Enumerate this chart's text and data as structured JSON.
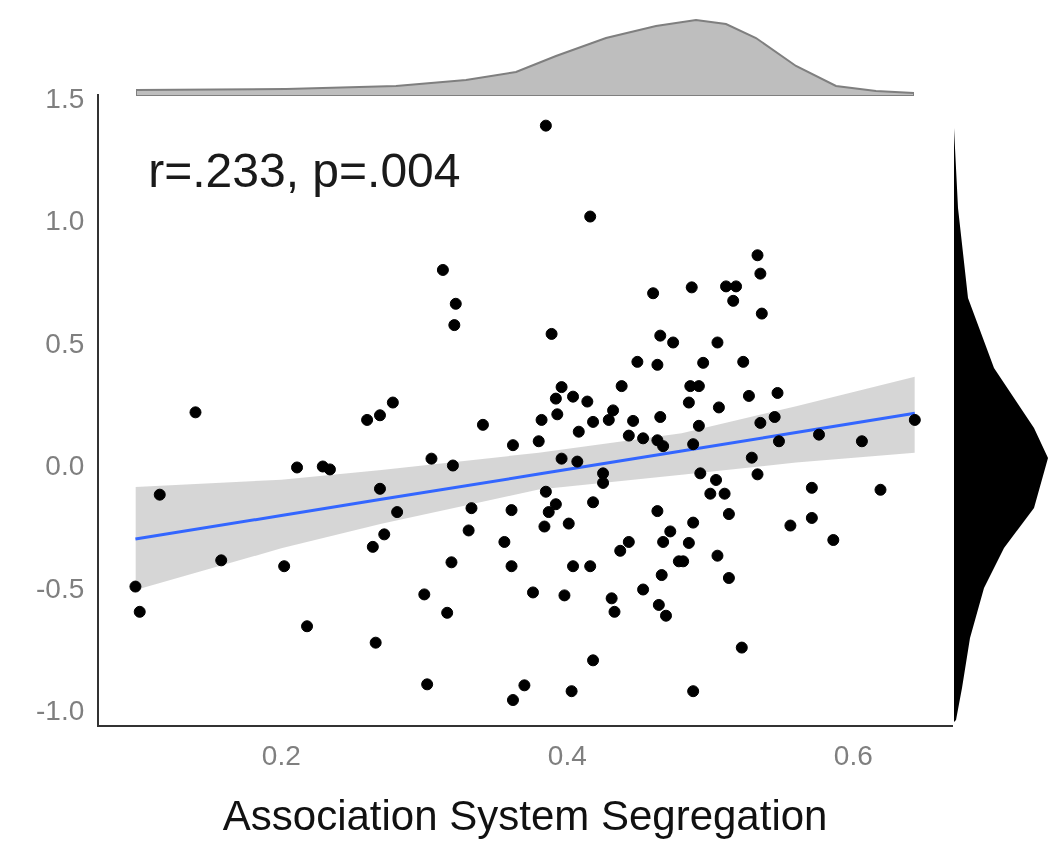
{
  "chart_data": {
    "type": "scatter",
    "xlabel": "Association System Segregation",
    "annotations": [
      "r=.233, p=.004"
    ],
    "xlim": [
      0.072,
      0.669
    ],
    "ylim": [
      -1.055,
      1.52
    ],
    "xticks": [
      {
        "value": 0.2,
        "label": "0.2"
      },
      {
        "value": 0.4,
        "label": "0.4"
      },
      {
        "value": 0.6,
        "label": "0.6"
      }
    ],
    "yticks": [
      {
        "value": -1,
        "label": "-1.0"
      },
      {
        "value": -0.5,
        "label": "-0.5"
      },
      {
        "value": 0,
        "label": "0.0"
      },
      {
        "value": 0.5,
        "label": "0.5"
      },
      {
        "value": 1,
        "label": "1.0"
      },
      {
        "value": 1.5,
        "label": "1.5"
      }
    ],
    "grid": false,
    "legend": false,
    "series": [
      {
        "marker": "circle",
        "color": "#000000",
        "x": [
          0.385,
          0.416,
          0.313,
          0.322,
          0.321,
          0.533,
          0.535,
          0.487,
          0.511,
          0.518,
          0.516,
          0.536,
          0.46,
          0.389,
          0.465,
          0.474,
          0.449,
          0.463,
          0.495,
          0.486,
          0.492,
          0.523,
          0.505,
          0.396,
          0.392,
          0.404,
          0.414,
          0.438,
          0.432,
          0.485,
          0.506,
          0.527,
          0.547,
          0.278,
          0.14,
          0.26,
          0.269,
          0.211,
          0.229,
          0.234,
          0.115,
          0.269,
          0.281,
          0.272,
          0.264,
          0.158,
          0.202,
          0.098,
          0.101,
          0.218,
          0.266,
          0.341,
          0.393,
          0.382,
          0.408,
          0.418,
          0.429,
          0.446,
          0.465,
          0.443,
          0.453,
          0.463,
          0.362,
          0.38,
          0.305,
          0.32,
          0.396,
          0.407,
          0.425,
          0.425,
          0.333,
          0.361,
          0.385,
          0.392,
          0.387,
          0.384,
          0.401,
          0.418,
          0.463,
          0.472,
          0.467,
          0.443,
          0.437,
          0.331,
          0.356,
          0.478,
          0.319,
          0.361,
          0.404,
          0.416,
          0.466,
          0.3,
          0.376,
          0.398,
          0.453,
          0.431,
          0.433,
          0.464,
          0.469,
          0.316,
          0.418,
          0.302,
          0.37,
          0.403,
          0.362,
          0.492,
          0.535,
          0.545,
          0.467,
          0.488,
          0.548,
          0.576,
          0.606,
          0.643,
          0.529,
          0.493,
          0.533,
          0.504,
          0.5,
          0.51,
          0.571,
          0.619,
          0.513,
          0.488,
          0.556,
          0.571,
          0.485,
          0.586,
          0.481,
          0.505,
          0.513,
          0.522,
          0.488
        ],
        "values": [
          1.395,
          1.024,
          0.806,
          0.668,
          0.581,
          0.866,
          0.791,
          0.735,
          0.739,
          0.739,
          0.68,
          0.628,
          0.711,
          0.545,
          0.538,
          0.51,
          0.431,
          0.419,
          0.427,
          0.332,
          0.332,
          0.431,
          0.51,
          0.328,
          0.281,
          0.289,
          0.269,
          0.332,
          0.233,
          0.265,
          0.245,
          0.292,
          0.304,
          0.265,
          0.225,
          0.194,
          0.213,
          0,
          0.004,
          -0.008,
          -0.111,
          -0.087,
          -0.182,
          -0.273,
          -0.324,
          -0.379,
          -0.403,
          -0.486,
          -0.589,
          -0.648,
          -0.715,
          0.174,
          0.217,
          0.194,
          0.146,
          0.186,
          0.194,
          0.19,
          0.206,
          0.13,
          0.119,
          0.111,
          0.091,
          0.107,
          0.036,
          0.008,
          0.036,
          0.024,
          -0.063,
          -0.024,
          -0.166,
          -0.174,
          -0.099,
          -0.15,
          -0.182,
          -0.241,
          -0.229,
          -0.142,
          -0.178,
          -0.261,
          -0.304,
          -0.304,
          -0.34,
          -0.257,
          -0.304,
          -0.383,
          -0.387,
          -0.403,
          -0.403,
          -0.403,
          -0.439,
          -0.518,
          -0.51,
          -0.522,
          -0.498,
          -0.534,
          -0.589,
          -0.561,
          -0.605,
          -0.593,
          -0.787,
          -0.885,
          -0.889,
          -0.913,
          -0.949,
          0.17,
          0.182,
          0.206,
          0.087,
          0.095,
          0.107,
          0.134,
          0.107,
          0.194,
          0.04,
          -0.024,
          -0.028,
          -0.051,
          -0.107,
          -0.107,
          -0.083,
          -0.091,
          -0.19,
          -0.225,
          -0.237,
          -0.206,
          -0.308,
          -0.296,
          -0.383,
          -0.36,
          -0.451,
          -0.735,
          -0.913
        ]
      },
      {
        "type": "line",
        "color": "#3366ff",
        "x": [
          0.098,
          0.2,
          0.27,
          0.38,
          0.48,
          0.56,
          0.643
        ],
        "values": [
          -0.292,
          -0.196,
          -0.13,
          -0.027,
          0.067,
          0.143,
          0.221
        ],
        "lower": [
          -0.5,
          -0.33,
          -0.23,
          -0.09,
          -0.03,
          0.02,
          0.06
        ],
        "upper": [
          -0.08,
          -0.05,
          -0.01,
          0.06,
          0.14,
          0.25,
          0.37
        ]
      }
    ]
  }
}
